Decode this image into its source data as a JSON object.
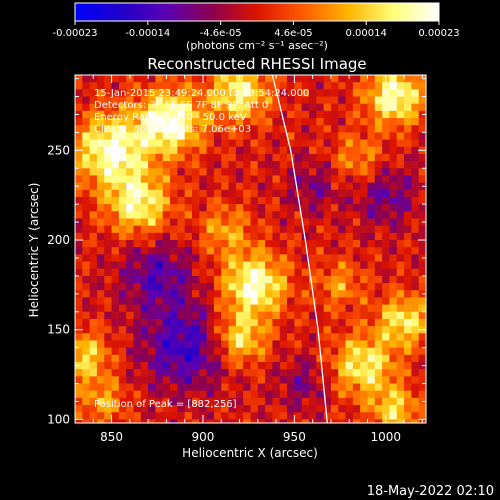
{
  "chart_data": {
    "type": "heatmap",
    "title": "Reconstructed RHESSI Image",
    "xlabel": "Heliocentric X (arcsec)",
    "ylabel": "Heliocentric Y (arcsec)",
    "xlim": [
      830,
      1022
    ],
    "ylim": [
      98,
      292
    ],
    "x_ticks": [
      850,
      900,
      950,
      1000
    ],
    "y_ticks": [
      100,
      150,
      200,
      250
    ],
    "colorbar": {
      "label": "(photons cm⁻² s⁻¹ asec⁻²)",
      "tick_labels": [
        "-0.00023",
        "-0.00014",
        "-4.6e-05",
        "4.6e-05",
        "0.00014",
        "0.00023"
      ],
      "range": [
        -0.00023,
        0.00023
      ],
      "colormap": [
        "#0000ff",
        "#1e00c8",
        "#5a00b4",
        "#8c0050",
        "#dc1400",
        "#ff5a00",
        "#ffb400",
        "#ffff78",
        "#ffffff"
      ]
    },
    "annotations": {
      "line1": "15-Jan-2015 23:49:24.000 to 23:54:24.000",
      "line2": "Detectors: 3F 5F 6F 7F 8F 9F, Att 0",
      "line3": "Energy Range: 25.0 - 50.0 keV",
      "line4": "Clean    Total counts: 7.06e+03",
      "peak": "Position of Peak = [882,256]"
    },
    "peak_position": [
      882,
      256
    ],
    "limb_curve": {
      "x": [
        938,
        948,
        956,
        963,
        968
      ],
      "y": [
        292,
        250,
        200,
        150,
        98
      ]
    },
    "sources": [
      {
        "x": 850,
        "y": 250,
        "amp": 1.05,
        "sigma": 14
      },
      {
        "x": 882,
        "y": 266,
        "amp": 1.15,
        "sigma": 12
      },
      {
        "x": 865,
        "y": 220,
        "amp": 0.9,
        "sigma": 12
      },
      {
        "x": 920,
        "y": 282,
        "amp": 0.9,
        "sigma": 11
      },
      {
        "x": 1005,
        "y": 280,
        "amp": 1.0,
        "sigma": 11
      },
      {
        "x": 985,
        "y": 245,
        "amp": 0.45,
        "sigma": 10
      },
      {
        "x": 928,
        "y": 175,
        "amp": 1.05,
        "sigma": 12
      },
      {
        "x": 920,
        "y": 145,
        "amp": 0.8,
        "sigma": 10
      },
      {
        "x": 912,
        "y": 205,
        "amp": 0.5,
        "sigma": 10
      },
      {
        "x": 835,
        "y": 135,
        "amp": 0.7,
        "sigma": 10
      },
      {
        "x": 845,
        "y": 110,
        "amp": 0.5,
        "sigma": 9
      },
      {
        "x": 988,
        "y": 130,
        "amp": 0.85,
        "sigma": 12
      },
      {
        "x": 1010,
        "y": 155,
        "amp": 0.8,
        "sigma": 10
      },
      {
        "x": 1005,
        "y": 105,
        "amp": 0.7,
        "sigma": 9
      },
      {
        "x": 975,
        "y": 175,
        "amp": 0.45,
        "sigma": 9
      },
      {
        "x": 890,
        "y": 140,
        "amp": -0.7,
        "sigma": 16
      },
      {
        "x": 875,
        "y": 180,
        "amp": -0.55,
        "sigma": 14
      },
      {
        "x": 1000,
        "y": 225,
        "amp": -0.45,
        "sigma": 12
      },
      {
        "x": 960,
        "y": 230,
        "amp": -0.35,
        "sigma": 10
      },
      {
        "x": 955,
        "y": 120,
        "amp": -0.35,
        "sigma": 10
      }
    ]
  },
  "footer": {
    "date": "18-May-2022 02:10"
  }
}
